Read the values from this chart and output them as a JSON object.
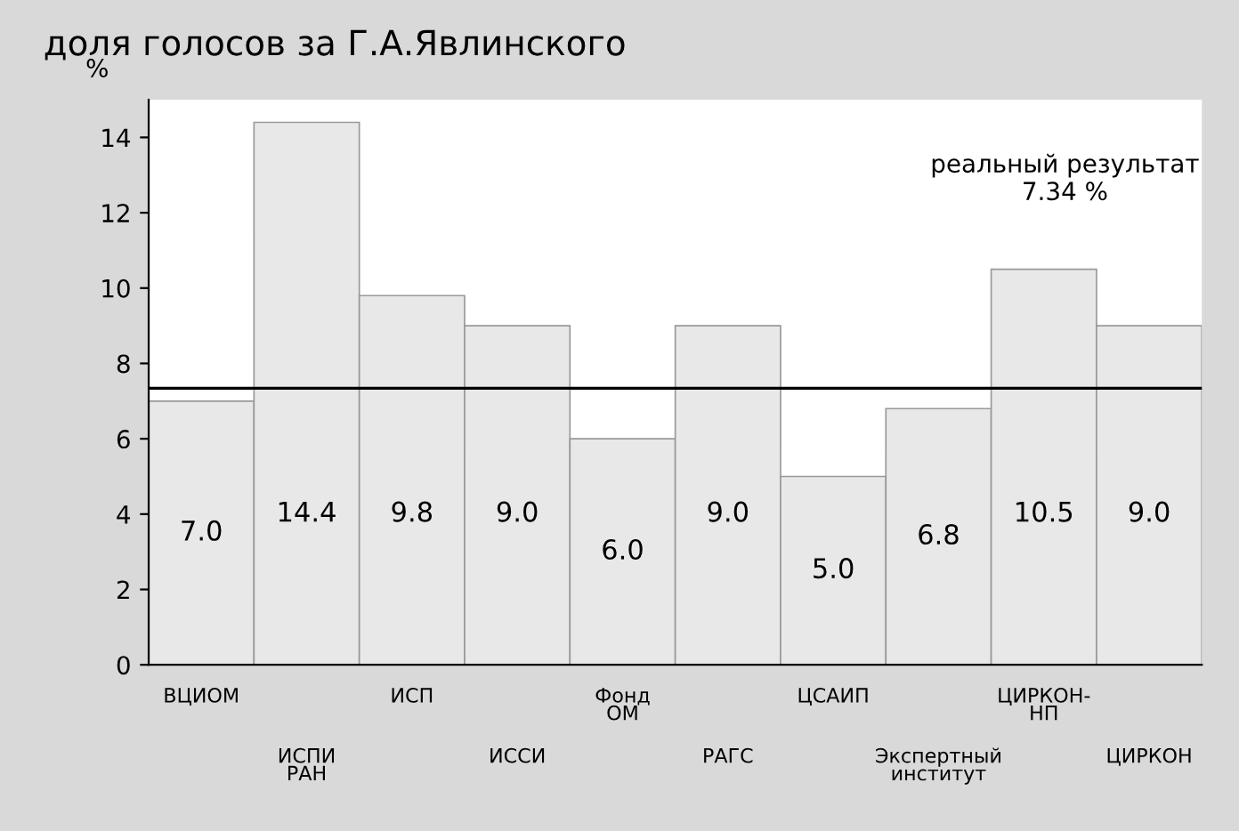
{
  "chart_data": {
    "type": "bar",
    "title": "доля голосов за Г.А.Явлинского",
    "ylabel": "%",
    "categories": [
      "ВЦИОМ",
      "ИСПИ\nРАН",
      "ИСП",
      "ИССИ",
      "Фонд\nОМ",
      "РАГС",
      "ЦСАИП",
      "Экспертный\nинститут",
      "ЦИРКОН-\nНП",
      "ЦИРКОН"
    ],
    "values": [
      7.0,
      14.4,
      9.8,
      9.0,
      6.0,
      9.0,
      5.0,
      6.8,
      10.5,
      9.0
    ],
    "value_labels": [
      "7.0",
      "14.4",
      "9.8",
      "9.0",
      "6.0",
      "9.0",
      "5.0",
      "6.8",
      "10.5",
      "9.0"
    ],
    "color": "#e8e8e8",
    "ylim": [
      0,
      15
    ],
    "yticks": [
      0,
      2,
      4,
      6,
      8,
      10,
      12,
      14
    ],
    "grid": false,
    "legend": false,
    "ref_lines": [
      {
        "axis": "y",
        "value": 7.34,
        "label": "реальный результат\n7.34 %",
        "color": "#000000"
      }
    ]
  }
}
